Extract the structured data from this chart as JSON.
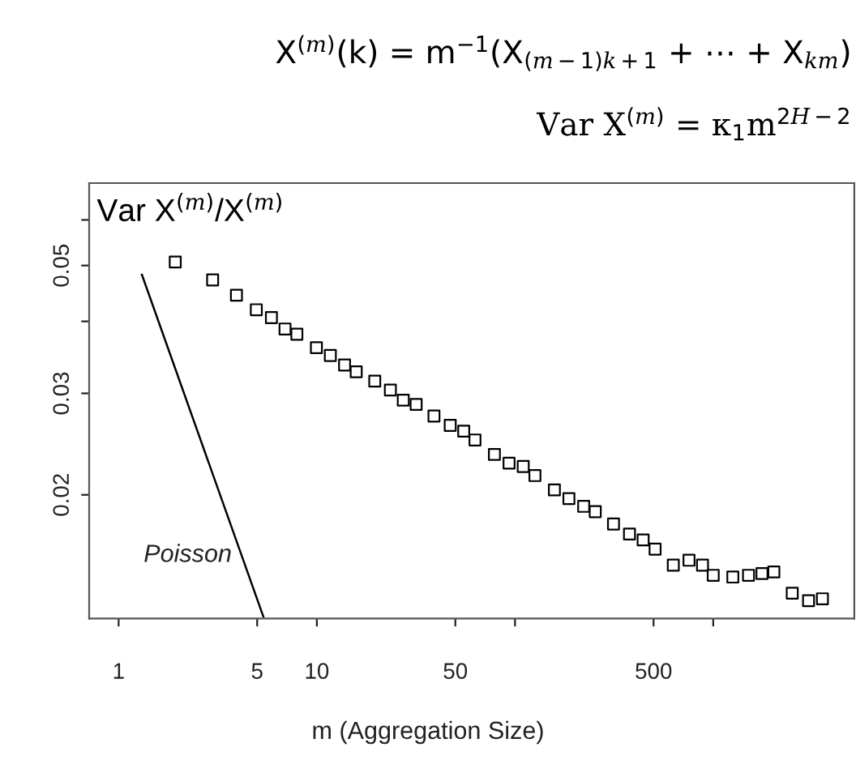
{
  "chart_data": {
    "type": "scatter",
    "title": "X$^{(m)}$(k) = m$^{−1}$(X$_{(m−1)k+1}$ + ⋯ + X$_{km}$)",
    "subtitle": "Var X$^{(m)}$ = κ$_{1}$m$^{2H−2}$",
    "ylabel": "Var X$^{(m)}$/X$^{(m)}$",
    "xlabel": "m (Aggregation Size)",
    "log": "xy",
    "xlim": [
      0.71,
      5150
    ],
    "ylim": [
      0.0122,
      0.0695
    ],
    "xticks": [
      1,
      5,
      10,
      50,
      {
        "value": 100,
        "label": null
      },
      500,
      {
        "value": 1000,
        "label": null
      }
    ],
    "yticks": [
      0.02,
      0.03,
      {
        "value": 0.04,
        "label": null
      },
      0.05,
      {
        "value": 0.06,
        "label": null
      }
    ],
    "grid": false,
    "legend": false,
    "marker": "square",
    "series": [
      {
        "type": "scatter",
        "color": "#000000",
        "x": [
          1.93,
          2.98,
          3.93,
          4.95,
          5.9,
          6.91,
          7.93,
          9.95,
          11.7,
          13.8,
          15.8,
          19.6,
          23.5,
          27.3,
          31.7,
          39.0,
          47.1,
          55.1,
          62.8,
          78.7,
          93.3,
          110,
          126,
          158,
          187,
          222,
          254,
          314,
          378,
          443,
          509,
          629,
          755,
          883,
          1000,
          1256,
          1507,
          1762,
          2023,
          2505,
          3027,
          3556
        ],
        "values": [
          0.0507,
          0.0472,
          0.0444,
          0.0419,
          0.0406,
          0.0388,
          0.038,
          0.036,
          0.0349,
          0.0336,
          0.0327,
          0.0315,
          0.0304,
          0.0292,
          0.0287,
          0.0274,
          0.0264,
          0.0258,
          0.0249,
          0.0235,
          0.0227,
          0.0224,
          0.0216,
          0.0204,
          0.0197,
          0.0191,
          0.0187,
          0.0178,
          0.0171,
          0.0167,
          0.0161,
          0.0151,
          0.0154,
          0.0151,
          0.0145,
          0.0144,
          0.0145,
          0.0146,
          0.0147,
          0.0135,
          0.0131,
          0.0132
        ]
      },
      {
        "type": "line",
        "name": "Poisson",
        "color": "#000000",
        "marker": "none",
        "line_style": "solid",
        "x": [
          1.31,
          5.37
        ],
        "values": [
          0.0482,
          0.0123
        ]
      }
    ]
  }
}
